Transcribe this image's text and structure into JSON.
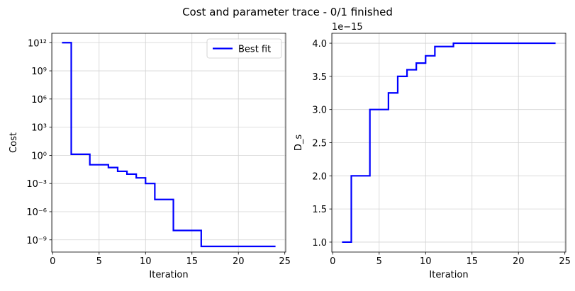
{
  "figure": {
    "suptitle": "Cost and parameter trace - 0/1 finished"
  },
  "chart_data": [
    {
      "type": "line",
      "subplot": "left",
      "xlabel": "Iteration",
      "ylabel": "Cost",
      "yscale": "log",
      "xlim": [
        -0.1,
        25.1
      ],
      "ylim_exp": [
        -10.3,
        13.0
      ],
      "x_ticks": [
        0,
        5,
        10,
        15,
        20,
        25
      ],
      "y_ticks_exp": [
        -9,
        -6,
        -3,
        0,
        3,
        6,
        9,
        12
      ],
      "grid": true,
      "legend": {
        "position": "top-right"
      },
      "series": [
        {
          "name": "Best fit",
          "color": "#0000ff",
          "drawstyle": "steps-post",
          "x": [
            1,
            2,
            4,
            6,
            7,
            8,
            9,
            10,
            11,
            13,
            16,
            24
          ],
          "y": [
            1000000000000.0,
            1.3,
            0.1,
            0.05,
            0.02,
            0.01,
            0.004,
            0.001,
            2e-05,
            1e-08,
            2e-10,
            2e-10
          ]
        }
      ]
    },
    {
      "type": "line",
      "subplot": "right",
      "xlabel": "Iteration",
      "ylabel": "D_s",
      "offset_label": "1e−15",
      "xlim": [
        -0.1,
        25.1
      ],
      "ylim": [
        0.85,
        4.15
      ],
      "x_ticks": [
        0,
        5,
        10,
        15,
        20,
        25
      ],
      "y_ticks": [
        1.0,
        1.5,
        2.0,
        2.5,
        3.0,
        3.5,
        4.0
      ],
      "grid": true,
      "series": [
        {
          "color": "#0000ff",
          "drawstyle": "steps-post",
          "x": [
            1,
            2,
            4,
            6,
            7,
            8,
            9,
            10,
            11,
            13,
            16,
            24
          ],
          "y": [
            1.0,
            2.0,
            3.0,
            3.25,
            3.5,
            3.6,
            3.7,
            3.81,
            3.95,
            4.0,
            4.0,
            4.0
          ]
        }
      ]
    }
  ]
}
